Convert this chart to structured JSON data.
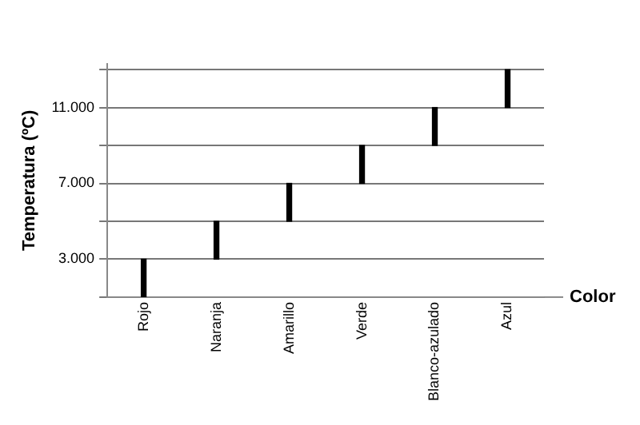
{
  "chart_data": {
    "type": "bar",
    "xlabel": "Color",
    "ylabel": "Temperatura (ºC)",
    "categories": [
      "Rojo",
      "Naranja",
      "Amarillo",
      "Verde",
      "Blanco-azulado",
      "Azul"
    ],
    "values": [
      2000,
      2000,
      2000,
      2000,
      2000,
      2000
    ],
    "base": [
      1000,
      3000,
      5000,
      7000,
      9000,
      11000
    ],
    "color": "#000000",
    "ylim": [
      1000,
      13300
    ],
    "yticks": [
      {
        "value": 1000,
        "label": null
      },
      {
        "value": 3000,
        "label": "3.000"
      },
      {
        "value": 5000,
        "label": null
      },
      {
        "value": 7000,
        "label": "7.000"
      },
      {
        "value": 9000,
        "label": null
      },
      {
        "value": 11000,
        "label": "11.000"
      },
      {
        "value": 13000,
        "label": null
      }
    ],
    "grid": "y",
    "legend": false
  }
}
